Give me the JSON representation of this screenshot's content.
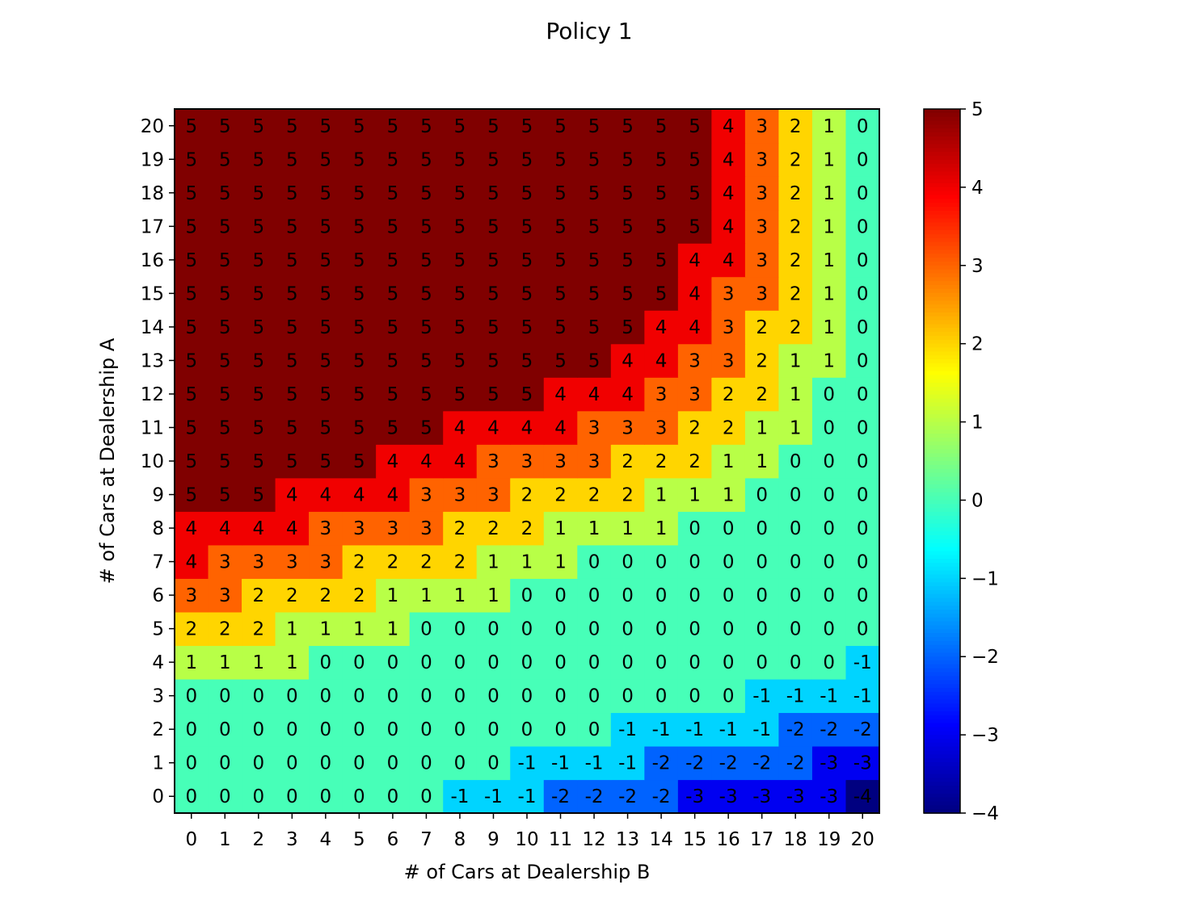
{
  "chart_data": {
    "type": "heatmap",
    "title": "Policy 1",
    "xlabel": "# of Cars at Dealership B",
    "ylabel": "# of Cars at Dealership A",
    "x": [
      0,
      1,
      2,
      3,
      4,
      5,
      6,
      7,
      8,
      9,
      10,
      11,
      12,
      13,
      14,
      15,
      16,
      17,
      18,
      19,
      20
    ],
    "y": [
      0,
      1,
      2,
      3,
      4,
      5,
      6,
      7,
      8,
      9,
      10,
      11,
      12,
      13,
      14,
      15,
      16,
      17,
      18,
      19,
      20
    ],
    "colormap": "jet",
    "clim": [
      -4,
      5
    ],
    "colorbar_ticks": [
      5,
      4,
      3,
      2,
      1,
      0,
      -1,
      -2,
      -3,
      -4
    ],
    "colorbar_tick_labels": [
      "5",
      "4",
      "3",
      "2",
      "1",
      "0",
      "−1",
      "−2",
      "−3",
      "−4"
    ],
    "values": [
      [
        0,
        0,
        0,
        0,
        0,
        0,
        0,
        0,
        -1,
        -1,
        -1,
        -2,
        -2,
        -2,
        -2,
        -3,
        -3,
        -3,
        -3,
        -3,
        -4
      ],
      [
        0,
        0,
        0,
        0,
        0,
        0,
        0,
        0,
        0,
        0,
        -1,
        -1,
        -1,
        -1,
        -2,
        -2,
        -2,
        -2,
        -2,
        -3,
        -3
      ],
      [
        0,
        0,
        0,
        0,
        0,
        0,
        0,
        0,
        0,
        0,
        0,
        0,
        0,
        -1,
        -1,
        -1,
        -1,
        -1,
        -2,
        -2,
        -2
      ],
      [
        0,
        0,
        0,
        0,
        0,
        0,
        0,
        0,
        0,
        0,
        0,
        0,
        0,
        0,
        0,
        0,
        0,
        -1,
        -1,
        -1,
        -1
      ],
      [
        1,
        1,
        1,
        1,
        0,
        0,
        0,
        0,
        0,
        0,
        0,
        0,
        0,
        0,
        0,
        0,
        0,
        0,
        0,
        0,
        -1
      ],
      [
        2,
        2,
        2,
        1,
        1,
        1,
        1,
        0,
        0,
        0,
        0,
        0,
        0,
        0,
        0,
        0,
        0,
        0,
        0,
        0,
        0
      ],
      [
        3,
        3,
        2,
        2,
        2,
        2,
        1,
        1,
        1,
        1,
        0,
        0,
        0,
        0,
        0,
        0,
        0,
        0,
        0,
        0,
        0
      ],
      [
        4,
        3,
        3,
        3,
        3,
        2,
        2,
        2,
        2,
        1,
        1,
        1,
        0,
        0,
        0,
        0,
        0,
        0,
        0,
        0,
        0
      ],
      [
        4,
        4,
        4,
        4,
        3,
        3,
        3,
        3,
        2,
        2,
        2,
        1,
        1,
        1,
        1,
        0,
        0,
        0,
        0,
        0,
        0
      ],
      [
        5,
        5,
        5,
        4,
        4,
        4,
        4,
        3,
        3,
        3,
        2,
        2,
        2,
        2,
        1,
        1,
        1,
        0,
        0,
        0,
        0
      ],
      [
        5,
        5,
        5,
        5,
        5,
        5,
        4,
        4,
        4,
        3,
        3,
        3,
        3,
        2,
        2,
        2,
        1,
        1,
        0,
        0,
        0
      ],
      [
        5,
        5,
        5,
        5,
        5,
        5,
        5,
        5,
        4,
        4,
        4,
        4,
        3,
        3,
        3,
        2,
        2,
        1,
        1,
        0,
        0
      ],
      [
        5,
        5,
        5,
        5,
        5,
        5,
        5,
        5,
        5,
        5,
        5,
        4,
        4,
        4,
        3,
        3,
        2,
        2,
        1,
        0,
        0
      ],
      [
        5,
        5,
        5,
        5,
        5,
        5,
        5,
        5,
        5,
        5,
        5,
        5,
        5,
        4,
        4,
        3,
        3,
        2,
        1,
        1,
        0
      ],
      [
        5,
        5,
        5,
        5,
        5,
        5,
        5,
        5,
        5,
        5,
        5,
        5,
        5,
        5,
        4,
        4,
        3,
        2,
        2,
        1,
        0
      ],
      [
        5,
        5,
        5,
        5,
        5,
        5,
        5,
        5,
        5,
        5,
        5,
        5,
        5,
        5,
        5,
        4,
        3,
        3,
        2,
        1,
        0
      ],
      [
        5,
        5,
        5,
        5,
        5,
        5,
        5,
        5,
        5,
        5,
        5,
        5,
        5,
        5,
        5,
        4,
        4,
        3,
        2,
        1,
        0
      ],
      [
        5,
        5,
        5,
        5,
        5,
        5,
        5,
        5,
        5,
        5,
        5,
        5,
        5,
        5,
        5,
        5,
        4,
        3,
        2,
        1,
        0
      ],
      [
        5,
        5,
        5,
        5,
        5,
        5,
        5,
        5,
        5,
        5,
        5,
        5,
        5,
        5,
        5,
        5,
        4,
        3,
        2,
        1,
        0
      ],
      [
        5,
        5,
        5,
        5,
        5,
        5,
        5,
        5,
        5,
        5,
        5,
        5,
        5,
        5,
        5,
        5,
        4,
        3,
        2,
        1,
        0
      ],
      [
        5,
        5,
        5,
        5,
        5,
        5,
        5,
        5,
        5,
        5,
        5,
        5,
        5,
        5,
        5,
        5,
        4,
        3,
        2,
        1,
        0
      ]
    ]
  }
}
